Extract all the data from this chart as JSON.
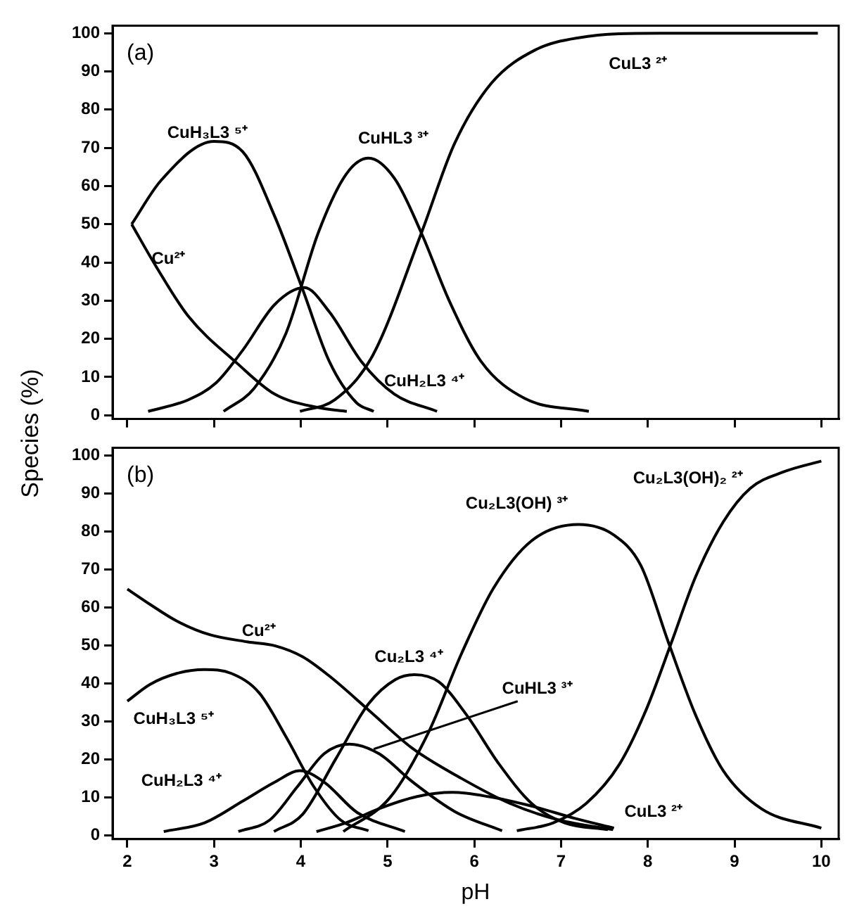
{
  "chart_data": [
    {
      "type": "line",
      "ylabel": "Species (%)",
      "annotations": [
        "(a)"
      ],
      "xlim": [
        1.83,
        10.2
      ],
      "ylim": [
        -1,
        102
      ],
      "xticks": [
        2,
        3,
        4,
        5,
        6,
        7,
        8,
        9,
        10
      ],
      "yticks": [
        0,
        10,
        20,
        30,
        40,
        50,
        60,
        70,
        80,
        90,
        100
      ],
      "tick_labels": "y",
      "grid": false,
      "legend": false,
      "series": [
        {
          "name": "Cu²⁺",
          "color": "#000000",
          "x": [
            2.05,
            2.33,
            2.7,
            3.27,
            3.7,
            4.2,
            4.53
          ],
          "values": [
            50,
            39,
            26,
            13.5,
            5.5,
            2,
            1
          ]
        },
        {
          "name": "CuH₃L3 ⁵⁺",
          "color": "#000000",
          "x": [
            2.05,
            2.39,
            3.0,
            3.33,
            3.7,
            4.02,
            4.33,
            4.64,
            4.84
          ],
          "values": [
            50,
            61.5,
            71.7,
            69,
            52,
            33,
            14,
            3.3,
            1
          ]
        },
        {
          "name": "CuH₂L3 ⁴⁺",
          "color": "#000000",
          "x": [
            2.24,
            2.7,
            3.02,
            3.33,
            3.7,
            4.04,
            4.33,
            4.7,
            5.08,
            5.57
          ],
          "values": [
            1,
            4,
            8.4,
            17,
            29,
            33.4,
            27,
            14,
            5.5,
            1
          ]
        },
        {
          "name": "CuHL3 ³⁺",
          "color": "#000000",
          "x": [
            3.11,
            3.46,
            3.83,
            4.2,
            4.52,
            4.78,
            5.08,
            5.39,
            5.71,
            6.08,
            6.58,
            7.32
          ],
          "values": [
            1,
            7,
            21.5,
            47.7,
            63,
            67.3,
            62,
            47.7,
            30,
            14,
            4.4,
            1
          ]
        },
        {
          "name": "CuL3 ²⁺",
          "color": "#000000",
          "x": [
            3.99,
            4.39,
            4.83,
            5.39,
            5.77,
            6.2,
            6.7,
            7.2,
            8.14,
            9.96
          ],
          "values": [
            1,
            4,
            15.7,
            47.7,
            71,
            87,
            95.6,
            98.8,
            100,
            100
          ]
        }
      ]
    },
    {
      "type": "line",
      "xlabel": "pH",
      "annotations": [
        "(b)"
      ],
      "xlim": [
        1.83,
        10.2
      ],
      "ylim": [
        -1,
        102
      ],
      "xticks": [
        2,
        3,
        4,
        5,
        6,
        7,
        8,
        9,
        10
      ],
      "yticks": [
        0,
        10,
        20,
        30,
        40,
        50,
        60,
        70,
        80,
        90,
        100
      ],
      "grid": false,
      "legend": false,
      "series": [
        {
          "name": "Cu²⁺",
          "color": "#000000",
          "x": [
            2,
            2.26,
            2.57,
            2.95,
            3.39,
            3.7,
            4.02,
            4.33,
            4.78,
            5.28,
            5.85,
            6.41,
            6.98,
            7.6
          ],
          "values": [
            64.8,
            60.8,
            56.4,
            52.8,
            50.9,
            49.9,
            47,
            41.9,
            33,
            23,
            15,
            8.4,
            4,
            1.5
          ]
        },
        {
          "name": "CuH₃L3 ⁵⁺",
          "color": "#000000",
          "x": [
            2,
            2.26,
            2.57,
            2.89,
            3.2,
            3.52,
            3.83,
            4.15,
            4.46,
            4.78
          ],
          "values": [
            35.3,
            39.7,
            42.6,
            43.6,
            42.6,
            37.5,
            25.9,
            12.8,
            4,
            1.2
          ]
        },
        {
          "name": "CuH₂L3 ⁴⁺",
          "color": "#000000",
          "x": [
            2.42,
            2.89,
            3.33,
            3.7,
            3.99,
            4.27,
            4.65,
            5.2
          ],
          "values": [
            1,
            3.3,
            9,
            14,
            17,
            14,
            6,
            1
          ]
        },
        {
          "name": "CuHL3 ³⁺",
          "color": "#000000",
          "x": [
            3.28,
            3.64,
            3.96,
            4.27,
            4.56,
            4.9,
            5.28,
            5.78,
            6.32
          ],
          "values": [
            1,
            4,
            12.8,
            21.5,
            24,
            21.5,
            14.2,
            6.2,
            1.2
          ]
        },
        {
          "name": "Cu₂L3 ⁴⁺",
          "color": "#000000",
          "x": [
            3.69,
            4.02,
            4.4,
            4.78,
            5.09,
            5.31,
            5.59,
            5.91,
            6.29,
            6.66,
            7.04,
            7.54
          ],
          "values": [
            1,
            5.5,
            20,
            34.6,
            41,
            42.3,
            40.4,
            31.7,
            18.6,
            8.4,
            3.3,
            1.5
          ]
        },
        {
          "name": "CuL3 ²⁺",
          "color": "#000000",
          "x": [
            4.18,
            4.52,
            4.9,
            5.34,
            5.75,
            6.16,
            6.66,
            7.17,
            7.61
          ],
          "values": [
            1,
            3.3,
            7,
            10.2,
            11.3,
            10.2,
            7.7,
            4.4,
            1.9
          ]
        },
        {
          "name": "Cu₂L3(OH) ³⁺",
          "color": "#000000",
          "x": [
            4.49,
            5.03,
            5.47,
            5.85,
            6.22,
            6.66,
            7.2,
            7.61,
            7.92,
            8.24,
            8.55,
            8.87,
            9.31,
            10
          ],
          "values": [
            1,
            10,
            27,
            47.7,
            65,
            77.5,
            81.8,
            79,
            71,
            50.6,
            31.7,
            17,
            7,
            1.9
          ]
        },
        {
          "name": "Cu₂L3(OH)₂ ²⁺",
          "color": "#000000",
          "x": [
            6.49,
            6.91,
            7.29,
            7.67,
            7.98,
            8.27,
            8.55,
            8.87,
            9.18,
            9.56,
            10
          ],
          "values": [
            1.2,
            3.3,
            8.4,
            18.6,
            33,
            50.6,
            68,
            82.5,
            91.3,
            95.6,
            98.5
          ]
        }
      ]
    }
  ]
}
